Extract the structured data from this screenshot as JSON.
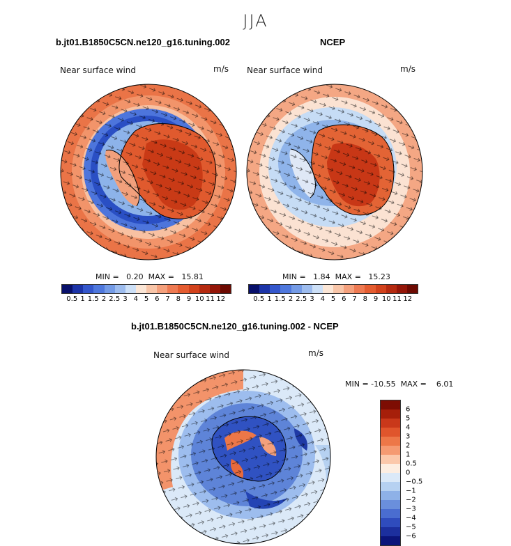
{
  "season": "JJA",
  "panels": [
    {
      "title": "b.jt01.B1850C5CN.ne120_g16.tuning.002",
      "variable": "Near surface wind",
      "units": "m/s",
      "min_max": "MIN =   0.20  MAX =   15.81"
    },
    {
      "title": "NCEP",
      "variable": "Near surface wind",
      "units": "m/s",
      "min_max": "MIN =   1.84  MAX =   15.23"
    },
    {
      "title": "b.jt01.B1850C5CN.ne120_g16.tuning.002 - NCEP",
      "variable": "Near surface wind",
      "units": "m/s",
      "min_max": "MIN = -10.55  MAX =    6.01"
    }
  ],
  "colorbar_abs": {
    "labels": [
      "0.5",
      "1",
      "1.5",
      "2",
      "2.5",
      "3",
      "4",
      "5",
      "6",
      "7",
      "8",
      "9",
      "10",
      "11",
      "12"
    ],
    "colors": [
      "#08106b",
      "#1c34a8",
      "#3457cc",
      "#4f78dd",
      "#749be6",
      "#9dbcee",
      "#cde0f7",
      "#fbe6d6",
      "#f8c5a8",
      "#f4a07c",
      "#ee7a52",
      "#e45c30",
      "#d2421c",
      "#b52a10",
      "#941608",
      "#6d0a02"
    ]
  },
  "colorbar_diff": {
    "labels": [
      "6",
      "5",
      "4",
      "3",
      "2",
      "1",
      "0.5",
      "0",
      "−0.5",
      "−1",
      "−2",
      "−3",
      "−4",
      "−5",
      "−6"
    ],
    "colors": [
      "#7d0d03",
      "#a61f0a",
      "#c9381a",
      "#e0552c",
      "#ed7748",
      "#f59a72",
      "#fbc8ab",
      "#fdeee2",
      "#dbe9f8",
      "#b6d1f1",
      "#8eb1e7",
      "#6a8fdc",
      "#4a6dd0",
      "#2f4cbd",
      "#1c2f9e",
      "#0b147a"
    ]
  }
}
